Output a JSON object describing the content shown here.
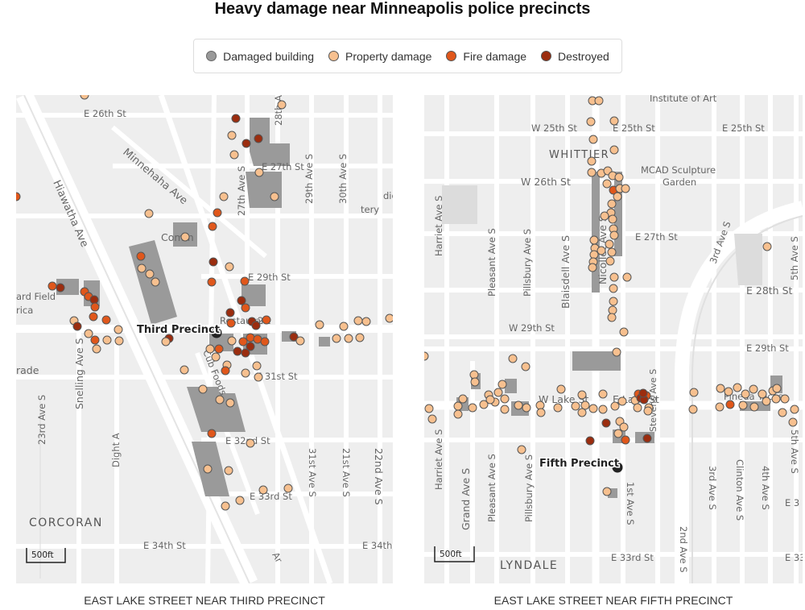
{
  "title": "Heavy damage near Minneapolis police precincts",
  "legend": [
    {
      "label": "Damaged building",
      "color": "#999999"
    },
    {
      "label": "Property damage",
      "color": "#f7c08f"
    },
    {
      "label": "Fire damage",
      "color": "#e0571b"
    },
    {
      "label": "Destroyed",
      "color": "#9b2d0f"
    }
  ],
  "maps": [
    {
      "caption": "EAST LAKE STREET NEAR THIRD PRECINCT",
      "precinct_label": "Third Precinct",
      "scale_label": "500ft",
      "neighborhood": "CORCORAN",
      "street_labels": [
        "E 26th St",
        "E 27th St",
        "E 29th St",
        "E 31st St",
        "E 32nd St",
        "E 33rd St",
        "E 34th St",
        "E 34th",
        "Hiawatha Ave",
        "Minnehaha Ave",
        "27th Ave S",
        "28th A",
        "29th Ave S",
        "30th Ave S",
        "31st Ave S",
        "21st Ave S",
        "22nd Ave S",
        "23rd Ave S",
        "Snelling Ave S",
        "Dight A",
        "Cub Foods",
        "Ar",
        "Comm",
        "diers",
        "tery",
        "ard Field",
        "rica",
        "rade",
        "Restaurant",
        "2"
      ]
    },
    {
      "caption": "EAST LAKE STREET NEAR FIFTH PRECINCT",
      "precinct_label": "Fifth Precinct",
      "scale_label": "500ft",
      "neighborhood": "LYNDALE",
      "street_labels": [
        "Institute of Art",
        "W 25th St",
        "E 25th St",
        "E 25th St",
        "WHITTIER",
        "W 26th St",
        "MCAD Sculpture",
        "Garden",
        "E 27th St",
        "E 28th St",
        "W 29th St",
        "E 29th St",
        "W Lake St",
        "E Lake St",
        "Pineda Tacos",
        "E 33rd St",
        "E 3",
        "E 33",
        "Harriet Ave S",
        "Harriet Ave S",
        "Pleasant Ave S",
        "Pleasant Ave S",
        "Pillsbury Ave S",
        "Pillsbury Ave S",
        "Blaisdell Ave S",
        "Nicollet Ave S",
        "3rd Ave S",
        "3rd Ave S",
        "5th Ave S",
        "5th Ave S",
        "Grand Ave S",
        "1st Ave S",
        "Stevens Ave S",
        "2nd Ave S",
        "Clinton Ave S",
        "4th Ave S"
      ]
    }
  ]
}
